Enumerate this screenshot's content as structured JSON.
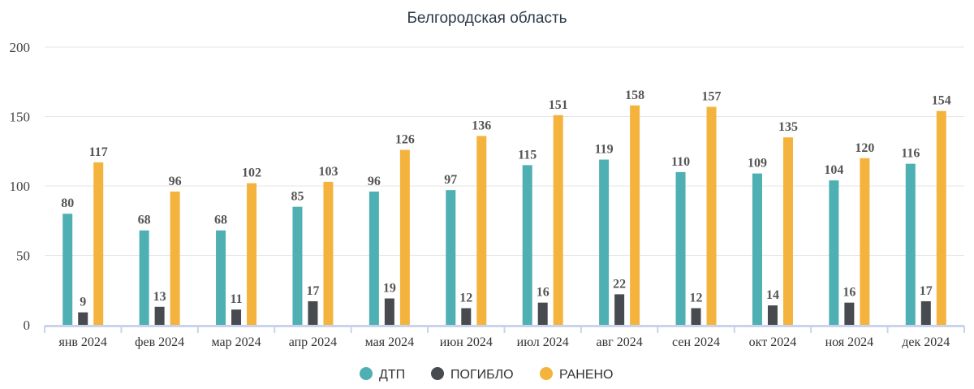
{
  "chart_data": {
    "type": "bar",
    "title": "Белгородская область",
    "xlabel": "",
    "ylabel": "",
    "ylim": [
      0,
      200
    ],
    "yticks": [
      0,
      50,
      100,
      150,
      200
    ],
    "grid": true,
    "legend_position": "bottom-center",
    "categories": [
      "янв 2024",
      "фев 2024",
      "мар 2024",
      "апр 2024",
      "мая 2024",
      "июн 2024",
      "июл 2024",
      "авг 2024",
      "сен 2024",
      "окт 2024",
      "ноя 2024",
      "дек 2024"
    ],
    "series": [
      {
        "name": "ДТП",
        "color": "#4fb0b3",
        "values": [
          80,
          68,
          68,
          85,
          96,
          97,
          115,
          119,
          110,
          109,
          104,
          116
        ]
      },
      {
        "name": "ПОГИБЛО",
        "color": "#474a4e",
        "values": [
          9,
          13,
          11,
          17,
          19,
          12,
          16,
          22,
          12,
          14,
          16,
          17
        ]
      },
      {
        "name": "РАНЕНО",
        "color": "#f4b33d",
        "values": [
          117,
          96,
          102,
          103,
          126,
          136,
          151,
          158,
          157,
          135,
          120,
          154
        ]
      }
    ]
  }
}
